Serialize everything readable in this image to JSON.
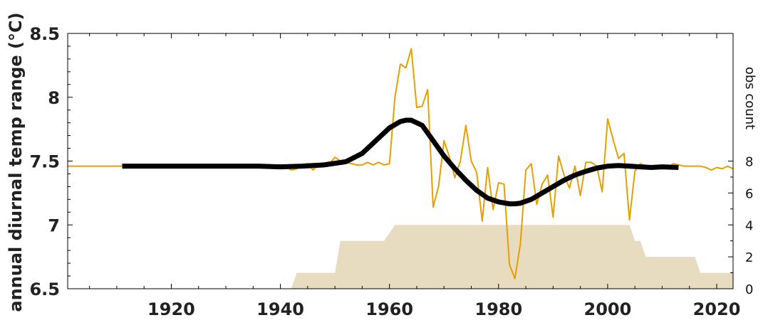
{
  "chart_data": {
    "type": "line",
    "ylabel": "annual diurnal temp range (°C)",
    "y2label": "obs count",
    "xlim": [
      1901,
      2023
    ],
    "ylim": [
      6.5,
      8.5
    ],
    "y2lim": [
      0,
      8
    ],
    "x_ticks": [
      1920,
      1940,
      1960,
      1980,
      2000,
      2020
    ],
    "y_ticks": [
      6.5,
      7,
      7.5,
      8,
      8.5
    ],
    "y_tick_labels": [
      "6.5",
      "7",
      "7.5",
      "8",
      "8.5"
    ],
    "y2_ticks": [
      0,
      2,
      4,
      6,
      8
    ],
    "colors": {
      "annual": "#E69F00",
      "smooth": "#000000",
      "count": "#E8DCC0"
    },
    "series": [
      {
        "x": [
          1901,
          1910,
          1920,
          1930,
          1940,
          1941,
          1942,
          1943,
          1944,
          1945,
          1946,
          1947,
          1948,
          1949,
          1950,
          1951,
          1952,
          1953,
          1954,
          1955,
          1956,
          1957,
          1958,
          1959,
          1960,
          1961,
          1962,
          1963,
          1964,
          1965,
          1966,
          1967,
          1968,
          1969,
          1970,
          1971,
          1972,
          1973,
          1974,
          1975,
          1976,
          1977,
          1978,
          1979,
          1980,
          1981,
          1982,
          1983,
          1984,
          1985,
          1986,
          1987,
          1988,
          1989,
          1990,
          1991,
          1992,
          1993,
          1994,
          1995,
          1996,
          1997,
          1998,
          1999,
          2000,
          2001,
          2002,
          2003,
          2004,
          2005,
          2006,
          2007,
          2008,
          2009,
          2010,
          2011,
          2012,
          2013,
          2014,
          2015,
          2016,
          2017,
          2018,
          2019,
          2020,
          2021,
          2022,
          2023
        ],
        "y": [
          7.46,
          7.46,
          7.46,
          7.46,
          7.46,
          7.46,
          7.43,
          7.44,
          7.47,
          7.48,
          7.43,
          7.47,
          7.48,
          7.48,
          7.53,
          7.5,
          7.49,
          7.48,
          7.47,
          7.47,
          7.49,
          7.47,
          7.49,
          7.47,
          7.48,
          8.0,
          8.26,
          8.23,
          8.38,
          7.92,
          7.93,
          8.06,
          7.14,
          7.3,
          7.66,
          7.53,
          7.37,
          7.5,
          7.78,
          7.5,
          7.41,
          7.03,
          7.45,
          7.12,
          7.33,
          7.32,
          6.69,
          6.58,
          6.85,
          7.43,
          7.48,
          7.16,
          7.32,
          7.39,
          7.06,
          7.54,
          7.39,
          7.29,
          7.46,
          7.23,
          7.49,
          7.49,
          7.46,
          7.26,
          7.83,
          7.67,
          7.52,
          7.56,
          7.04,
          7.42,
          7.48,
          7.46,
          7.46,
          7.45,
          7.45,
          7.44,
          7.48,
          7.47,
          7.46,
          7.46,
          7.46,
          7.46,
          7.45,
          7.43,
          7.45,
          7.44,
          7.46,
          7.44
        ]
      },
      {
        "x": [
          1911,
          1920,
          1930,
          1936,
          1940,
          1944,
          1948,
          1952,
          1955,
          1958,
          1960,
          1962,
          1963,
          1964,
          1966,
          1968,
          1970,
          1972,
          1974,
          1976,
          1978,
          1980,
          1982,
          1983,
          1984,
          1986,
          1988,
          1990,
          1992,
          1994,
          1996,
          1998,
          2000,
          2002,
          2004,
          2006,
          2008,
          2010,
          2013
        ],
        "y": [
          7.46,
          7.46,
          7.46,
          7.46,
          7.455,
          7.46,
          7.47,
          7.495,
          7.56,
          7.68,
          7.76,
          7.81,
          7.82,
          7.82,
          7.78,
          7.66,
          7.54,
          7.44,
          7.35,
          7.27,
          7.21,
          7.18,
          7.165,
          7.165,
          7.17,
          7.2,
          7.25,
          7.3,
          7.35,
          7.39,
          7.42,
          7.445,
          7.46,
          7.465,
          7.46,
          7.455,
          7.45,
          7.455,
          7.45
        ]
      },
      {
        "x": [
          1942,
          1943,
          1950,
          1951,
          1959,
          1961,
          2004,
          2005,
          2006,
          2007,
          2008,
          2016,
          2017,
          2023
        ],
        "y": [
          0,
          1,
          1,
          3,
          3,
          4,
          4,
          3,
          3,
          2,
          2,
          2,
          1,
          1
        ]
      }
    ]
  }
}
